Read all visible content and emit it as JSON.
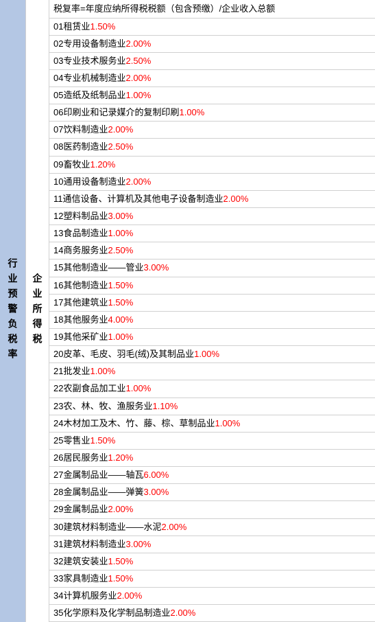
{
  "leftLabel": "行业预警负税率",
  "middleLabel": "企业所得税",
  "headerText": "税复率=年度应纳所得税税额（包含预缴）/企业收入总额",
  "rows": [
    {
      "num": "01",
      "label": "租赁业",
      "rate": "1.50%"
    },
    {
      "num": "02",
      "label": "专用设备制造业",
      "rate": "2.00%"
    },
    {
      "num": "03",
      "label": "专业技术服务业",
      "rate": "2.50%"
    },
    {
      "num": "04",
      "label": "专业机械制造业",
      "rate": "2.00%"
    },
    {
      "num": "05",
      "label": "造纸及纸制品业",
      "rate": "1.00%"
    },
    {
      "num": "06",
      "label": "印刷业和记录媒介的复制印刷",
      "rate": "1.00%"
    },
    {
      "num": "07",
      "label": "饮料制造业",
      "rate": "2.00%"
    },
    {
      "num": "08",
      "label": "医药制造业",
      "rate": "2.50%"
    },
    {
      "num": "09",
      "label": "畜牧业",
      "rate": "1.20%"
    },
    {
      "num": "10",
      "label": "通用设备制造业",
      "rate": "2.00%"
    },
    {
      "num": "11",
      "label": "通信设备、计算机及其他电子设备制造业",
      "rate": "2.00%"
    },
    {
      "num": "12",
      "label": "塑料制品业",
      "rate": "3.00%"
    },
    {
      "num": "13",
      "label": "食品制造业",
      "rate": "1.00%"
    },
    {
      "num": "14",
      "label": "商务服务业",
      "rate": "2.50%"
    },
    {
      "num": "15",
      "label": "其他制造业——管业",
      "rate": "3.00%"
    },
    {
      "num": "16",
      "label": "其他制造业",
      "rate": "1.50%"
    },
    {
      "num": "17",
      "label": "其他建筑业",
      "rate": "1.50%"
    },
    {
      "num": "18",
      "label": "其他服务业",
      "rate": "4.00%"
    },
    {
      "num": "19",
      "label": "其他采矿业",
      "rate": "1.00%"
    },
    {
      "num": "20",
      "label": "皮革、毛皮、羽毛(绒)及其制品业",
      "rate": "1.00%"
    },
    {
      "num": "21",
      "label": "批发业",
      "rate": "1.00%"
    },
    {
      "num": "22",
      "label": "农副食品加工业",
      "rate": "1.00%"
    },
    {
      "num": "23",
      "label": "农、林、牧、渔服务业",
      "rate": "1.10%"
    },
    {
      "num": "24",
      "label": "木材加工及木、竹、藤、棕、草制品业",
      "rate": "1.00%"
    },
    {
      "num": "25",
      "label": "零售业",
      "rate": "1.50%"
    },
    {
      "num": "26",
      "label": "居民服务业",
      "rate": "1.20%"
    },
    {
      "num": "27",
      "label": "金属制品业——轴瓦",
      "rate": "6.00%"
    },
    {
      "num": "28",
      "label": "金属制品业——弹簧",
      "rate": "3.00%"
    },
    {
      "num": "29",
      "label": "金属制品业",
      "rate": "2.00%",
      "nospace": true
    },
    {
      "num": "30",
      "label": "建筑材料制造业——水泥",
      "rate": "2.00%"
    },
    {
      "num": "31",
      "label": "建筑材料制造业",
      "rate": "3.00%"
    },
    {
      "num": "32",
      "label": "建筑安装业",
      "rate": "1.50%"
    },
    {
      "num": "33",
      "label": "家具制造业",
      "rate": "1.50%"
    },
    {
      "num": "34",
      "label": "计算机服务业",
      "rate": "2.00%"
    },
    {
      "num": "35",
      "label": "化学原料及化学制品制造业",
      "rate": "2.00%"
    }
  ],
  "colors": {
    "leftBg": "#b4c7e4",
    "rateColor": "#ff0000",
    "textColor": "#000000",
    "borderColor": "#d0d0d0",
    "bgColor": "#ffffff"
  }
}
